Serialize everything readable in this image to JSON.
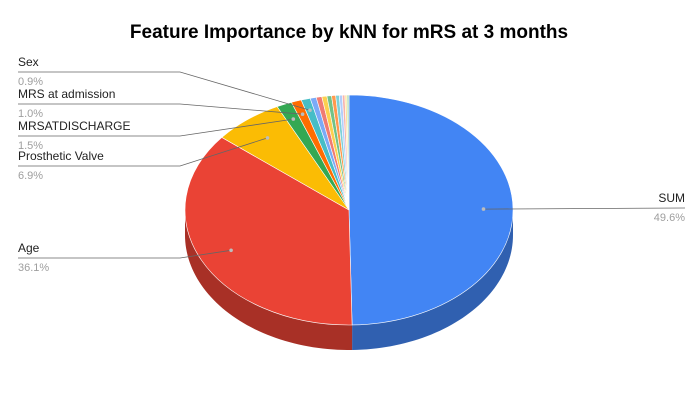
{
  "chart_data": {
    "type": "pie",
    "title": "Feature Importance by kNN for mRS at 3 months",
    "slices": [
      {
        "label": "SUM",
        "value": 49.6,
        "pct_label": "49.6%",
        "color": "#4285f4"
      },
      {
        "label": "Age",
        "value": 36.1,
        "pct_label": "36.1%",
        "color": "#ea4335"
      },
      {
        "label": "Prosthetic Valve",
        "value": 6.9,
        "pct_label": "6.9%",
        "color": "#fbbc04"
      },
      {
        "label": "MRSATDISCHARGE",
        "value": 1.5,
        "pct_label": "1.5%",
        "color": "#34a853"
      },
      {
        "label": "MRS at admission",
        "value": 1.0,
        "pct_label": "1.0%",
        "color": "#ff6d01"
      },
      {
        "label": "Sex",
        "value": 0.9,
        "pct_label": "0.9%",
        "color": "#46bdc6"
      },
      {
        "label": "",
        "value": 0.6,
        "color": "#7baaf7"
      },
      {
        "label": "",
        "value": 0.55,
        "color": "#f07b72"
      },
      {
        "label": "",
        "value": 0.5,
        "color": "#fcd04f"
      },
      {
        "label": "",
        "value": 0.45,
        "color": "#71c287"
      },
      {
        "label": "",
        "value": 0.4,
        "color": "#ff994d"
      },
      {
        "label": "",
        "value": 0.35,
        "color": "#7ed1d7"
      },
      {
        "label": "",
        "value": 0.3,
        "color": "#b3cefb"
      },
      {
        "label": "",
        "value": 0.25,
        "color": "#f7b4ae"
      },
      {
        "label": "",
        "value": 0.2,
        "color": "#fde49b"
      },
      {
        "label": "",
        "value": 0.2,
        "color": "#aedcba"
      }
    ],
    "shown_labels": [
      "SUM",
      "Age",
      "Prosthetic Valve",
      "MRSATDISCHARGE",
      "MRS at admission",
      "Sex"
    ],
    "style": "3d-tilted"
  }
}
